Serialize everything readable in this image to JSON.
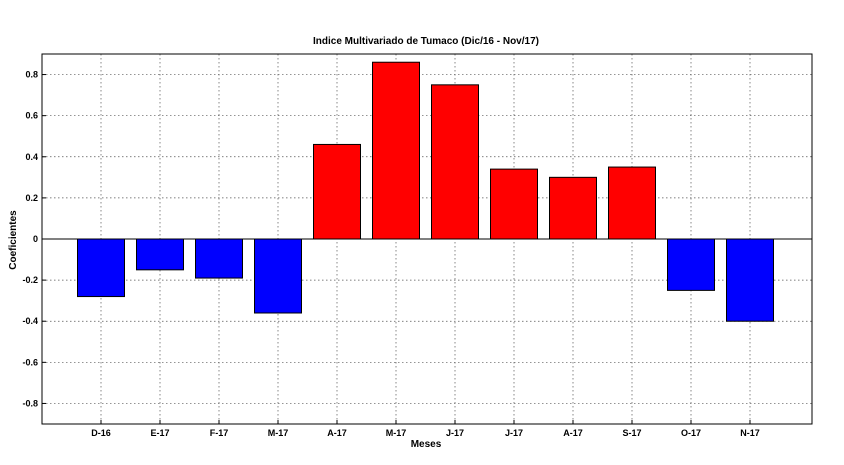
{
  "chart_data": {
    "type": "bar",
    "title": "Indice Multivariado de Tumaco (Dic/16  - Nov/17)",
    "xlabel": "Meses",
    "ylabel": "Coeficientes",
    "categories": [
      "D-16",
      "E-17",
      "F-17",
      "M-17",
      "A-17",
      "M-17",
      "J-17",
      "J-17",
      "A-17",
      "S-17",
      "O-17",
      "N-17"
    ],
    "values": [
      -0.28,
      -0.15,
      -0.19,
      -0.36,
      0.46,
      0.86,
      0.75,
      0.34,
      0.3,
      0.35,
      -0.25,
      -0.4
    ],
    "ylim": [
      -0.9,
      0.9
    ],
    "yticks": [
      -0.8,
      -0.6,
      -0.4,
      -0.2,
      0,
      0.2,
      0.4,
      0.6,
      0.8
    ],
    "ytick_labels": [
      "-0.8",
      "-0.6",
      "-0.4",
      "-0.2",
      "0",
      "0.2",
      "0.4",
      "0.6",
      "0.8"
    ],
    "grid": true,
    "colors": {
      "positive": "#ff0000",
      "negative": "#0000ff"
    }
  }
}
